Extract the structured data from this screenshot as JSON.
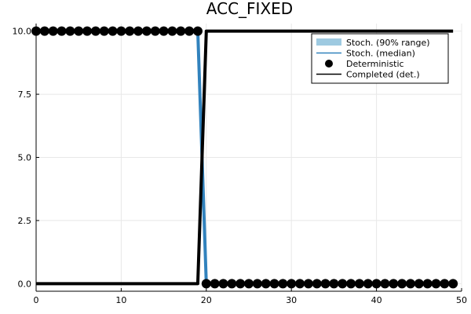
{
  "chart_data": {
    "type": "line",
    "title": "ACC_FIXED",
    "xlabel": "",
    "ylabel": "",
    "xlim": [
      0,
      50
    ],
    "ylim": [
      -0.3,
      10.3
    ],
    "x_ticks": [
      0,
      10,
      20,
      30,
      40,
      50
    ],
    "y_ticks": [
      0.0,
      2.5,
      5.0,
      7.5,
      10.0
    ],
    "x_tick_labels": [
      "0",
      "10",
      "20",
      "30",
      "40",
      "50"
    ],
    "y_tick_labels": [
      "0.0",
      "2.5",
      "5.0",
      "7.5",
      "10.0"
    ],
    "grid": true,
    "legend_position": "top-right",
    "legend": [
      {
        "label": "Stoch. (90% range)",
        "kind": "band"
      },
      {
        "label": "Stoch. (median)",
        "kind": "line"
      },
      {
        "label": "Deterministic",
        "kind": "marker"
      },
      {
        "label": "Completed (det.)",
        "kind": "line"
      }
    ],
    "x": [
      0,
      1,
      2,
      3,
      4,
      5,
      6,
      7,
      8,
      9,
      10,
      11,
      12,
      13,
      14,
      15,
      16,
      17,
      18,
      19,
      20,
      21,
      22,
      23,
      24,
      25,
      26,
      27,
      28,
      29,
      30,
      31,
      32,
      33,
      34,
      35,
      36,
      37,
      38,
      39,
      40,
      41,
      42,
      43,
      44,
      45,
      46,
      47,
      48,
      49
    ],
    "series": [
      {
        "name": "Stoch. (90% range)",
        "lower": [
          10,
          10,
          10,
          10,
          10,
          10,
          10,
          10,
          10,
          10,
          10,
          10,
          10,
          10,
          10,
          10,
          10,
          10,
          10,
          10,
          0,
          0,
          0,
          0,
          0,
          0,
          0,
          0,
          0,
          0,
          0,
          0,
          0,
          0,
          0,
          0,
          0,
          0,
          0,
          0,
          0,
          0,
          0,
          0,
          0,
          0,
          0,
          0,
          0,
          0
        ],
        "upper": [
          10,
          10,
          10,
          10,
          10,
          10,
          10,
          10,
          10,
          10,
          10,
          10,
          10,
          10,
          10,
          10,
          10,
          10,
          10,
          10,
          0,
          0,
          0,
          0,
          0,
          0,
          0,
          0,
          0,
          0,
          0,
          0,
          0,
          0,
          0,
          0,
          0,
          0,
          0,
          0,
          0,
          0,
          0,
          0,
          0,
          0,
          0,
          0,
          0,
          0
        ]
      },
      {
        "name": "Stoch. (median)",
        "values": [
          10,
          10,
          10,
          10,
          10,
          10,
          10,
          10,
          10,
          10,
          10,
          10,
          10,
          10,
          10,
          10,
          10,
          10,
          10,
          10,
          0,
          0,
          0,
          0,
          0,
          0,
          0,
          0,
          0,
          0,
          0,
          0,
          0,
          0,
          0,
          0,
          0,
          0,
          0,
          0,
          0,
          0,
          0,
          0,
          0,
          0,
          0,
          0,
          0,
          0
        ]
      },
      {
        "name": "Deterministic",
        "values": [
          10,
          10,
          10,
          10,
          10,
          10,
          10,
          10,
          10,
          10,
          10,
          10,
          10,
          10,
          10,
          10,
          10,
          10,
          10,
          10,
          0,
          0,
          0,
          0,
          0,
          0,
          0,
          0,
          0,
          0,
          0,
          0,
          0,
          0,
          0,
          0,
          0,
          0,
          0,
          0,
          0,
          0,
          0,
          0,
          0,
          0,
          0,
          0,
          0,
          0
        ]
      },
      {
        "name": "Completed (det.)",
        "values": [
          0,
          0,
          0,
          0,
          0,
          0,
          0,
          0,
          0,
          0,
          0,
          0,
          0,
          0,
          0,
          0,
          0,
          0,
          0,
          0,
          10,
          10,
          10,
          10,
          10,
          10,
          10,
          10,
          10,
          10,
          10,
          10,
          10,
          10,
          10,
          10,
          10,
          10,
          10,
          10,
          10,
          10,
          10,
          10,
          10,
          10,
          10,
          10,
          10,
          10
        ]
      }
    ],
    "colors": {
      "band": "#9ecae1",
      "median": "#3182bd",
      "deterministic": "#000000",
      "completed": "#000000",
      "grid": "#e8e8e8",
      "axis": "#000000"
    }
  }
}
